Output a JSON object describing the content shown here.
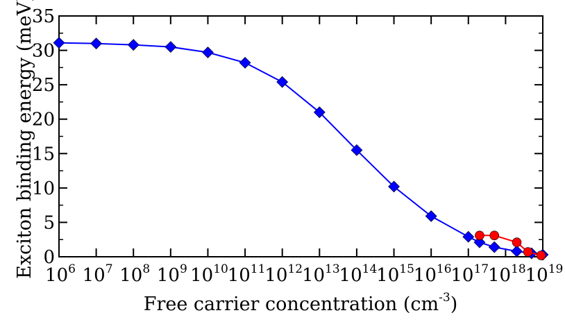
{
  "chart_data": {
    "type": "line",
    "title": "",
    "xlabel": "Free carrier concentration (cm",
    "xlabel_sup": "-3",
    "xlabel_end": ")",
    "ylabel": "Exciton binding energy (meV)",
    "x_scale": "log",
    "xlim": [
      1000000.0,
      1e+19
    ],
    "ylim": [
      0,
      35
    ],
    "grid": false,
    "y_ticks": [
      0,
      5,
      10,
      15,
      20,
      25,
      30,
      35
    ],
    "x_ticks": [
      {
        "base": "10",
        "exp": "6"
      },
      {
        "base": "10",
        "exp": "7"
      },
      {
        "base": "10",
        "exp": "8"
      },
      {
        "base": "10",
        "exp": "9"
      },
      {
        "base": "10",
        "exp": "10"
      },
      {
        "base": "10",
        "exp": "11"
      },
      {
        "base": "10",
        "exp": "12"
      },
      {
        "base": "10",
        "exp": "13"
      },
      {
        "base": "10",
        "exp": "14"
      },
      {
        "base": "10",
        "exp": "15"
      },
      {
        "base": "10",
        "exp": "16"
      },
      {
        "base": "10",
        "exp": "17"
      },
      {
        "base": "10",
        "exp": "18"
      },
      {
        "base": "10",
        "exp": "19"
      }
    ],
    "series": [
      {
        "color": "#0000ff",
        "marker": "diamond",
        "x": [
          1000000.0,
          10000000.0,
          100000000.0,
          1000000000.0,
          10000000000.0,
          100000000000.0,
          1000000000000.0,
          10000000000000.0,
          100000000000000.0,
          1000000000000000.0,
          1e+16,
          1e+17,
          2e+17,
          5e+17,
          2e+18,
          5e+18,
          1e+19
        ],
        "y": [
          31.1,
          31.0,
          30.8,
          30.5,
          29.7,
          28.2,
          25.4,
          21.0,
          15.5,
          10.2,
          5.9,
          2.9,
          2.1,
          1.4,
          0.8,
          0.5,
          0.3
        ]
      },
      {
        "color": "#ff0000",
        "marker": "circle",
        "x": [
          2e+17,
          5e+17,
          2e+18,
          4e+18,
          9e+18
        ],
        "y": [
          3.1,
          3.1,
          2.1,
          0.7,
          0.2
        ]
      }
    ]
  }
}
